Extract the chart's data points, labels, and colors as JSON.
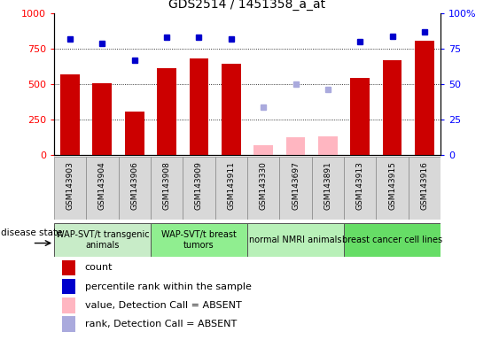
{
  "title": "GDS2514 / 1451358_a_at",
  "samples": [
    "GSM143903",
    "GSM143904",
    "GSM143906",
    "GSM143908",
    "GSM143909",
    "GSM143911",
    "GSM143330",
    "GSM143697",
    "GSM143891",
    "GSM143913",
    "GSM143915",
    "GSM143916"
  ],
  "count_values": [
    570,
    505,
    305,
    615,
    680,
    645,
    null,
    null,
    null,
    545,
    670,
    810
  ],
  "count_absent": [
    null,
    null,
    null,
    null,
    null,
    null,
    65,
    125,
    130,
    null,
    null,
    null
  ],
  "rank_values": [
    82,
    79,
    67,
    83,
    83,
    82,
    null,
    null,
    null,
    80,
    84,
    87
  ],
  "rank_absent": [
    null,
    null,
    null,
    null,
    null,
    null,
    34,
    50,
    46,
    null,
    null,
    null
  ],
  "groups": [
    {
      "label": "WAP-SVT/t transgenic\nanimals",
      "start": 0,
      "end": 3,
      "color": "#c8ecc8"
    },
    {
      "label": "WAP-SVT/t breast\ntumors",
      "start": 3,
      "end": 6,
      "color": "#90ee90"
    },
    {
      "label": "normal NMRI animals",
      "start": 6,
      "end": 9,
      "color": "#b8f0b8"
    },
    {
      "label": "breast cancer cell lines",
      "start": 9,
      "end": 12,
      "color": "#66dd66"
    }
  ],
  "bar_color": "#cc0000",
  "absent_bar_color": "#ffb6c1",
  "rank_color": "#0000cc",
  "absent_rank_color": "#aaaadd",
  "ylim_left": [
    0,
    1000
  ],
  "ylim_right": [
    0,
    100
  ],
  "yticks_left": [
    0,
    250,
    500,
    750,
    1000
  ],
  "yticks_right": [
    0,
    25,
    50,
    75,
    100
  ],
  "grid_values": [
    250,
    500,
    750
  ],
  "legend_items": [
    {
      "label": "count",
      "color": "#cc0000"
    },
    {
      "label": "percentile rank within the sample",
      "color": "#0000cc"
    },
    {
      "label": "value, Detection Call = ABSENT",
      "color": "#ffb6c1"
    },
    {
      "label": "rank, Detection Call = ABSENT",
      "color": "#aaaadd"
    }
  ],
  "group_label": "disease state",
  "bar_width": 0.6,
  "tick_box_color": "#d8d8d8",
  "tick_box_border": "#888888",
  "plot_bg": "#ffffff",
  "fig_bg": "#ffffff"
}
